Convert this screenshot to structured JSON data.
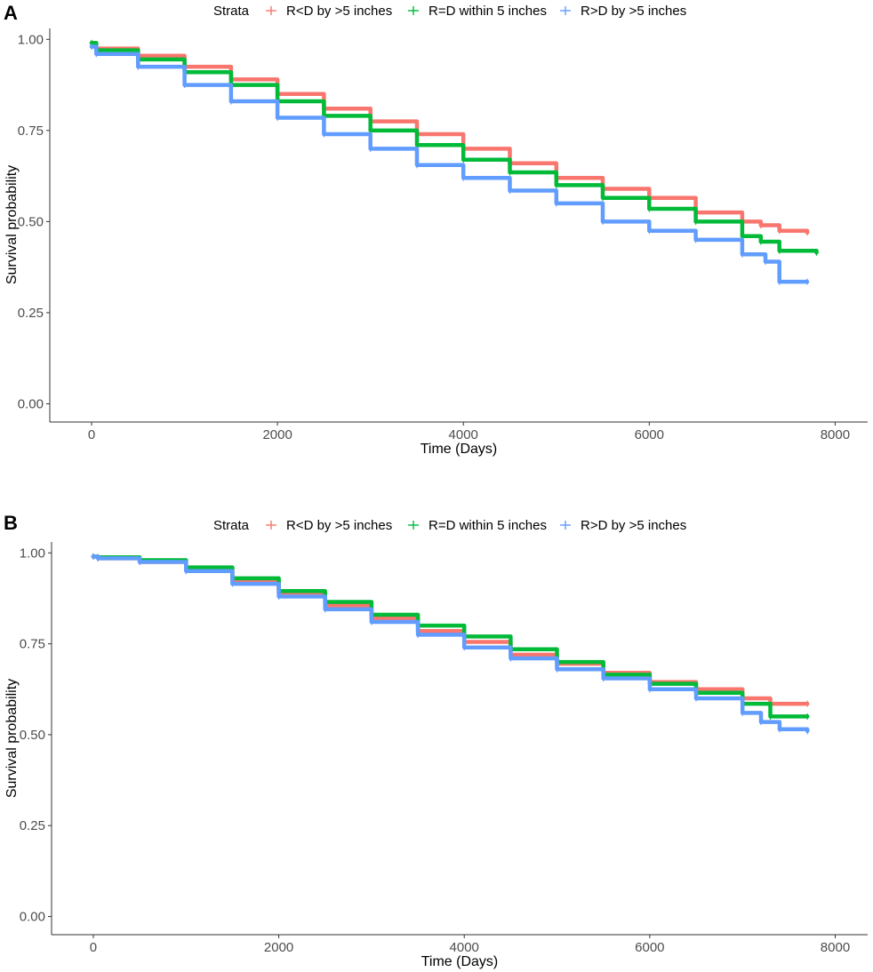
{
  "chart_data": [
    {
      "type": "line",
      "panel_label": "A",
      "title": "",
      "xlabel": "Time (Days)",
      "ylabel": "Survival probability",
      "xlim": [
        -450,
        8350
      ],
      "ylim": [
        -0.05,
        1.03
      ],
      "xticks": [
        0,
        2000,
        4000,
        6000,
        8000
      ],
      "xtick_labels": [
        "0",
        "2000",
        "4000",
        "6000",
        "8000"
      ],
      "yticks": [
        0,
        0.25,
        0.5,
        0.75,
        1.0
      ],
      "ytick_labels": [
        "0.00",
        "0.25",
        "0.50",
        "0.75",
        "1.00"
      ],
      "grid": false,
      "legend": {
        "title": "Strata",
        "position": "top",
        "entries": [
          "R<D by >5 inches",
          "R=D within 5 inches",
          "R>D by >5 inches"
        ]
      },
      "series": [
        {
          "name": "R<D by >5 inches",
          "color": "#f8766d",
          "x": [
            0,
            50,
            500,
            1000,
            1500,
            2000,
            2500,
            3000,
            3500,
            4000,
            4500,
            5000,
            5500,
            6000,
            6500,
            7000,
            7200,
            7400,
            7700
          ],
          "y": [
            0.99,
            0.975,
            0.955,
            0.925,
            0.89,
            0.85,
            0.81,
            0.775,
            0.74,
            0.7,
            0.66,
            0.62,
            0.59,
            0.565,
            0.525,
            0.5,
            0.49,
            0.475,
            0.47
          ]
        },
        {
          "name": "R=D within 5 inches",
          "color": "#00ba38",
          "x": [
            0,
            50,
            500,
            1000,
            1500,
            2000,
            2500,
            3000,
            3500,
            4000,
            4500,
            5000,
            5500,
            6000,
            6500,
            7000,
            7200,
            7400,
            7800
          ],
          "y": [
            0.99,
            0.97,
            0.945,
            0.91,
            0.875,
            0.83,
            0.79,
            0.75,
            0.71,
            0.67,
            0.635,
            0.6,
            0.565,
            0.535,
            0.5,
            0.46,
            0.445,
            0.42,
            0.415
          ]
        },
        {
          "name": "R>D by >5 inches",
          "color": "#619cff",
          "x": [
            0,
            50,
            500,
            1000,
            1500,
            2000,
            2500,
            3000,
            3500,
            4000,
            4500,
            5000,
            5500,
            6000,
            6500,
            7000,
            7250,
            7400,
            7700
          ],
          "y": [
            0.98,
            0.96,
            0.925,
            0.875,
            0.83,
            0.785,
            0.74,
            0.7,
            0.655,
            0.62,
            0.585,
            0.55,
            0.5,
            0.475,
            0.45,
            0.41,
            0.39,
            0.335,
            0.335
          ]
        }
      ]
    },
    {
      "type": "line",
      "panel_label": "B",
      "title": "",
      "xlabel": "Time (Days)",
      "ylabel": "Survival probability",
      "xlim": [
        -450,
        8350
      ],
      "ylim": [
        -0.05,
        1.03
      ],
      "xticks": [
        0,
        2000,
        4000,
        6000,
        8000
      ],
      "xtick_labels": [
        "0",
        "2000",
        "4000",
        "6000",
        "8000"
      ],
      "yticks": [
        0,
        0.25,
        0.5,
        0.75,
        1.0
      ],
      "ytick_labels": [
        "0.00",
        "0.25",
        "0.50",
        "0.75",
        "1.00"
      ],
      "grid": false,
      "legend": {
        "title": "Strata",
        "position": "top",
        "entries": [
          "R<D by >5 inches",
          "R=D within 5 inches",
          "R>D by >5 inches"
        ]
      },
      "series": [
        {
          "name": "R<D by >5 inches",
          "color": "#f8766d",
          "x": [
            0,
            50,
            500,
            1000,
            1500,
            2000,
            2500,
            3000,
            3500,
            4000,
            4500,
            5000,
            5500,
            6000,
            6500,
            7000,
            7300,
            7700
          ],
          "y": [
            0.99,
            0.985,
            0.975,
            0.955,
            0.925,
            0.89,
            0.855,
            0.82,
            0.785,
            0.755,
            0.72,
            0.695,
            0.67,
            0.645,
            0.625,
            0.6,
            0.585,
            0.585
          ]
        },
        {
          "name": "R=D within 5 inches",
          "color": "#00ba38",
          "x": [
            0,
            50,
            500,
            1000,
            1500,
            2000,
            2500,
            3000,
            3500,
            4000,
            4500,
            5000,
            5500,
            6000,
            6500,
            7000,
            7300,
            7700
          ],
          "y": [
            0.99,
            0.988,
            0.98,
            0.96,
            0.93,
            0.895,
            0.865,
            0.83,
            0.8,
            0.77,
            0.735,
            0.7,
            0.665,
            0.64,
            0.615,
            0.585,
            0.55,
            0.55
          ]
        },
        {
          "name": "R>D by >5 inches",
          "color": "#619cff",
          "x": [
            0,
            50,
            500,
            1000,
            1500,
            2000,
            2500,
            3000,
            3500,
            4000,
            4500,
            5000,
            5500,
            6000,
            6500,
            7000,
            7200,
            7400,
            7700
          ],
          "y": [
            0.99,
            0.985,
            0.975,
            0.95,
            0.915,
            0.88,
            0.845,
            0.81,
            0.775,
            0.74,
            0.71,
            0.68,
            0.655,
            0.625,
            0.6,
            0.56,
            0.535,
            0.515,
            0.51
          ]
        }
      ]
    }
  ]
}
